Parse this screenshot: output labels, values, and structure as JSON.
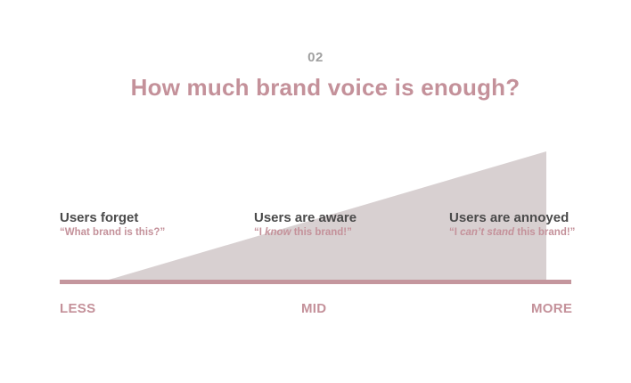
{
  "slide": {
    "number": "02",
    "title": "How much brand voice is enough?"
  },
  "scale": {
    "low_label": "LESS",
    "mid_label": "MID",
    "high_label": "MORE"
  },
  "states": [
    {
      "heading": "Users forget",
      "quote_parts": [
        "“What brand is this?”"
      ]
    },
    {
      "heading": "Users are aware",
      "quote_parts": [
        "“I ",
        "know",
        " this brand!”"
      ]
    },
    {
      "heading": "Users are annoyed",
      "quote_parts": [
        "“I ",
        "can’t stand",
        " this brand!”"
      ]
    }
  ],
  "colors": {
    "accent": "#c4919a",
    "heading_text": "#4a4a4a",
    "number_text": "#a0a0a0",
    "wedge_fill": "#d8d0d1",
    "axis_line": "#c4969d"
  }
}
